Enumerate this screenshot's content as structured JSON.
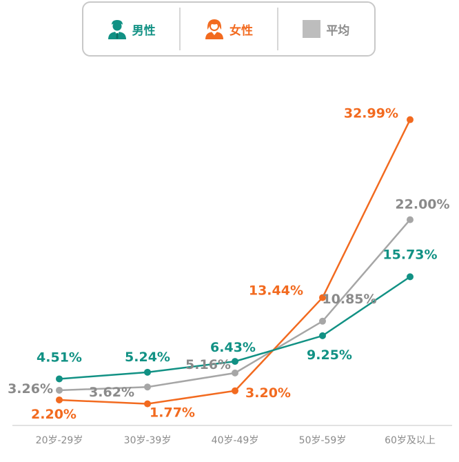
{
  "colors": {
    "male": "#119184",
    "female": "#f26a1f",
    "average": "#a6a6a6",
    "axis": "#d9d9d9"
  },
  "legend": [
    {
      "key": "male",
      "label": "男性",
      "icon": "male-person-icon"
    },
    {
      "key": "female",
      "label": "女性",
      "icon": "female-person-icon"
    },
    {
      "key": "average",
      "label": "平均",
      "icon": "gray-square-icon"
    }
  ],
  "chart_data": {
    "type": "line",
    "categories": [
      "20岁-29岁",
      "30岁-39岁",
      "40岁-49岁",
      "50岁-59岁",
      "60岁及以上"
    ],
    "ylim": [
      0,
      35
    ],
    "legend_position": "top-center",
    "grid": false,
    "series": [
      {
        "key": "male",
        "name": "男性",
        "values": [
          4.51,
          5.24,
          6.43,
          9.25,
          15.73
        ],
        "labels": [
          "4.51%",
          "5.24%",
          "6.43%",
          "9.25%",
          "15.73%"
        ]
      },
      {
        "key": "female",
        "name": "女性",
        "values": [
          2.2,
          1.77,
          3.2,
          13.44,
          32.99
        ],
        "labels": [
          "2.20%",
          "1.77%",
          "3.20%",
          "13.44%",
          "32.99%"
        ]
      },
      {
        "key": "average",
        "name": "平均",
        "values": [
          3.26,
          3.62,
          5.16,
          10.85,
          22.0
        ],
        "labels": [
          "3.26%",
          "3.62%",
          "5.16%",
          "10.85%",
          "22.00%"
        ]
      }
    ]
  }
}
